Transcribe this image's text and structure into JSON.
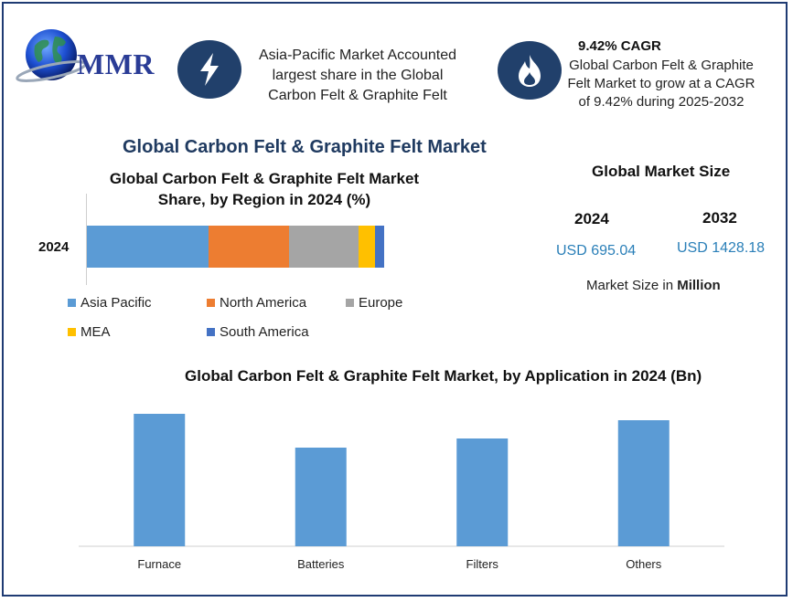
{
  "brand": {
    "logo_text": "MMR"
  },
  "info_left": {
    "icon": "lightning-bolt-icon",
    "text_lines": [
      "Asia-Pacific Market Accounted",
      "largest share in the Global",
      "Carbon Felt & Graphite Felt"
    ]
  },
  "info_right": {
    "icon": "flame-icon",
    "title": "9.42% CAGR",
    "text_lines": [
      "Global Carbon Felt & Graphite",
      "Felt Market to grow at a CAGR",
      "of 9.42% during 2025-2032"
    ]
  },
  "main_title": "Global Carbon Felt & Graphite Felt Market",
  "market_size": {
    "title": "Global Market Size",
    "entries": [
      {
        "year": "2024",
        "value": "USD 695.04"
      },
      {
        "year": "2032",
        "value": "USD 1428.18"
      }
    ],
    "unit_prefix": "Market Size in ",
    "unit_bold": "Million"
  },
  "colors": {
    "asia_pacific": "#5b9bd5",
    "north_america": "#ed7d31",
    "europe": "#a5a5a5",
    "mea": "#ffc000",
    "south_america": "#4472c4",
    "bars": "#5b9bd5",
    "icon_bg": "#21406b"
  },
  "chart_data": [
    {
      "type": "bar",
      "orientation": "horizontal",
      "stacked": true,
      "title_lines": [
        "Global Carbon Felt & Graphite Felt Market",
        "Share, by Region in 2024 (%)"
      ],
      "categories": [
        "2024"
      ],
      "series": [
        {
          "name": "Asia Pacific",
          "values": [
            41
          ]
        },
        {
          "name": "North America",
          "values": [
            27
          ]
        },
        {
          "name": "Europe",
          "values": [
            23.5
          ]
        },
        {
          "name": "MEA",
          "values": [
            5.5
          ]
        },
        {
          "name": "South America",
          "values": [
            3
          ]
        }
      ],
      "legend_position": "bottom",
      "grid": false
    },
    {
      "type": "bar",
      "title": "Global Carbon Felt & Graphite Felt Market, by Application in 2024 (Bn)",
      "categories": [
        "Furnace",
        "Batteries",
        "Filters",
        "Others"
      ],
      "values": [
        145,
        108,
        118,
        138
      ],
      "ylim": [
        0,
        160
      ],
      "grid": false
    }
  ]
}
